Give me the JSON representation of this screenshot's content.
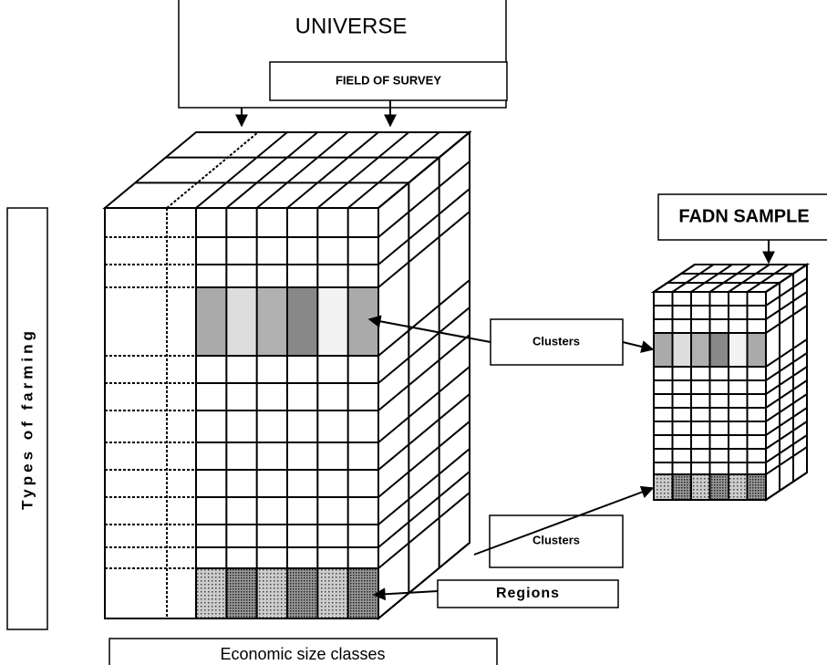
{
  "header": {
    "title": "UNIVERSE",
    "subtitle": "FIELD OF SURVEY"
  },
  "sample": "FADN SAMPLE",
  "axes": {
    "vertical": "Types of farming",
    "horizontal": "Economic size classes"
  },
  "labels": [
    "Clusters",
    "Clusters",
    "Regions"
  ]
}
